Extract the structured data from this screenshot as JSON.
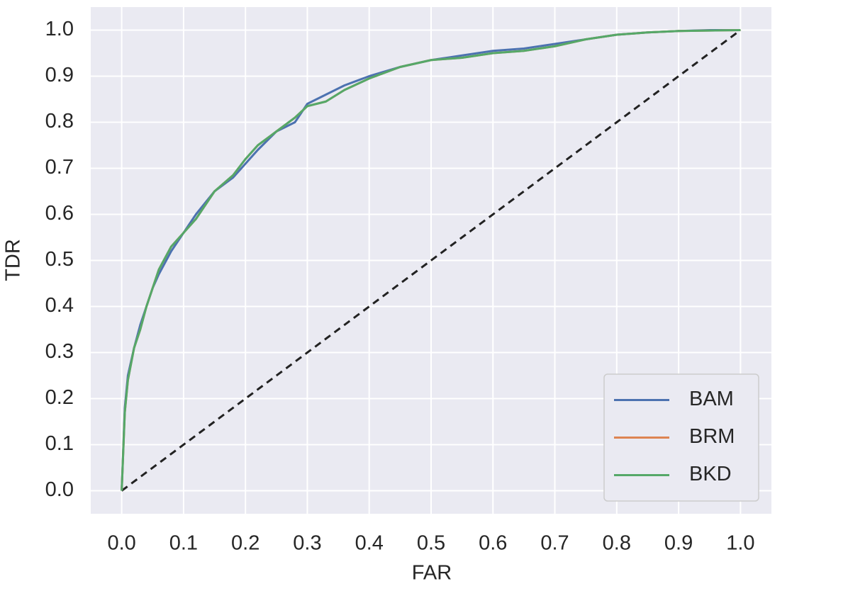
{
  "chart_data": {
    "type": "line",
    "x_label": "FAR",
    "y_label": "TDR",
    "x": [
      0,
      0.005,
      0.01,
      0.02,
      0.03,
      0.04,
      0.05,
      0.06,
      0.08,
      0.1,
      0.12,
      0.15,
      0.18,
      0.2,
      0.22,
      0.25,
      0.28,
      0.3,
      0.33,
      0.36,
      0.4,
      0.45,
      0.5,
      0.55,
      0.6,
      0.65,
      0.7,
      0.75,
      0.8,
      0.85,
      0.9,
      0.95,
      1.0
    ],
    "series": [
      {
        "name": "BAM",
        "color": "#4c72b0",
        "values": [
          0,
          0.18,
          0.25,
          0.31,
          0.36,
          0.4,
          0.44,
          0.47,
          0.52,
          0.56,
          0.6,
          0.65,
          0.68,
          0.71,
          0.74,
          0.78,
          0.8,
          0.84,
          0.86,
          0.88,
          0.9,
          0.92,
          0.935,
          0.945,
          0.955,
          0.96,
          0.97,
          0.98,
          0.99,
          0.995,
          0.998,
          1.0,
          1.0
        ]
      },
      {
        "name": "BRM",
        "color": "#dd8452",
        "values": [
          0,
          0.17,
          0.24,
          0.31,
          0.35,
          0.4,
          0.44,
          0.48,
          0.53,
          0.56,
          0.59,
          0.65,
          0.685,
          0.72,
          0.75,
          0.78,
          0.81,
          0.835,
          0.845,
          0.87,
          0.895,
          0.92,
          0.935,
          0.94,
          0.95,
          0.955,
          0.965,
          0.98,
          0.99,
          0.995,
          0.998,
          0.999,
          1.0
        ]
      },
      {
        "name": "BKD",
        "color": "#55a868",
        "values": [
          0,
          0.17,
          0.24,
          0.31,
          0.35,
          0.4,
          0.44,
          0.48,
          0.53,
          0.56,
          0.59,
          0.65,
          0.685,
          0.72,
          0.75,
          0.78,
          0.81,
          0.835,
          0.845,
          0.87,
          0.895,
          0.92,
          0.935,
          0.94,
          0.95,
          0.955,
          0.965,
          0.98,
          0.99,
          0.995,
          0.998,
          0.999,
          1.0
        ]
      }
    ],
    "diagonal": {
      "x": [
        0,
        1
      ],
      "values": [
        0,
        1
      ],
      "color": "#222222"
    },
    "xlim": [
      -0.05,
      1.05
    ],
    "ylim": [
      -0.05,
      1.05
    ],
    "xticks": [
      {
        "value": 0,
        "label": "0.0"
      },
      0.1,
      0.2,
      0.3,
      0.4,
      0.5,
      0.6,
      0.7,
      0.8,
      0.9,
      {
        "value": 1,
        "label": "1.0"
      }
    ],
    "yticks": [
      {
        "value": 0,
        "label": "0.0"
      },
      0.1,
      0.2,
      0.3,
      0.4,
      0.5,
      0.6,
      0.7,
      0.8,
      0.9,
      {
        "value": 1,
        "label": "1.0"
      }
    ],
    "grid": true,
    "legend": "lower right"
  }
}
